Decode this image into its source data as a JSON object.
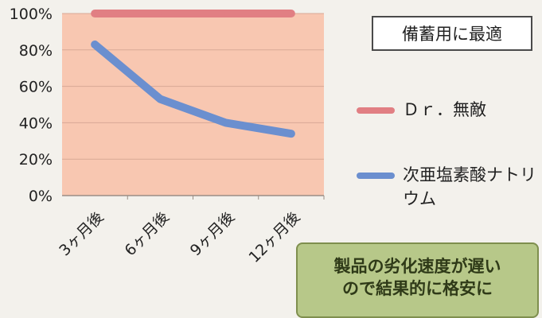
{
  "chart_data": {
    "type": "line",
    "categories": [
      "3ヶ月後",
      "6ヶ月後",
      "9ヶ月後",
      "12ヶ月後"
    ],
    "series": [
      {
        "name": "Ｄｒ．無敵",
        "values": [
          100,
          100,
          100,
          100
        ],
        "color": "#e17f83"
      },
      {
        "name": "次亜塩素酸ナトリウム",
        "values": [
          83,
          53,
          40,
          34
        ],
        "color": "#6b8fcf"
      }
    ],
    "y_ticks": [
      "0%",
      "20%",
      "40%",
      "60%",
      "80%",
      "100%"
    ],
    "ylim": [
      0,
      100
    ],
    "grid": true,
    "legend": "right",
    "plot_bg": "#f8c7b1"
  },
  "badge_text": "備蓄用に最適",
  "legend": {
    "item1": "Ｄｒ．無敵",
    "item2": "次亜塩素酸ナトリウム"
  },
  "callout": {
    "line1": "製品の劣化速度が遅い",
    "line2": "ので結果的に格安に"
  }
}
